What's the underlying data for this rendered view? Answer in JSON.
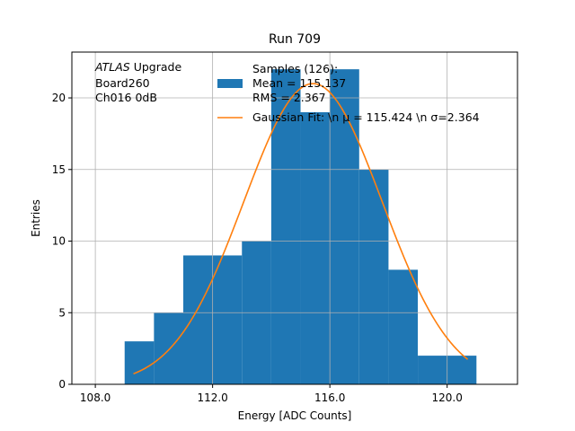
{
  "chart_data": {
    "type": "bar",
    "title": "Run 709",
    "xlabel": "Energy [ADC Counts]",
    "ylabel": "Entries",
    "xlim": [
      107.2,
      122.4
    ],
    "ylim": [
      0,
      23.2
    ],
    "x_ticks": [
      108.0,
      112.0,
      116.0,
      120.0
    ],
    "x_tick_labels": [
      "108.0",
      "112.0",
      "116.0",
      "120.0"
    ],
    "y_ticks": [
      0,
      5,
      10,
      15,
      20
    ],
    "y_tick_labels": [
      "0",
      "5",
      "10",
      "15",
      "20"
    ],
    "grid": true,
    "bin_edges": [
      109,
      110,
      111,
      112,
      113,
      114,
      115,
      116,
      117,
      118,
      119,
      120,
      121
    ],
    "values": [
      3,
      5,
      9,
      9,
      10,
      22,
      19,
      22,
      15,
      8,
      2,
      2
    ],
    "bar_color": "#1f77b4",
    "fit": {
      "name": "Gaussian Fit: \\n $\\mu$ = 115.424 \\n $\\sigma$=2.364",
      "mu": 115.424,
      "sigma": 2.364,
      "amplitude": 21.0,
      "x_range": [
        109.3,
        120.7
      ],
      "color": "#ff7f0e"
    },
    "legend": {
      "placement": "top-right",
      "entries": [
        {
          "label_lines": [
            "Samples (126):",
            " Mean = 115.137",
            " RMS = 2.367"
          ],
          "color": "#1f77b4",
          "kind": "patch"
        },
        {
          "label_lines": [
            "Gaussian Fit: \\n μ = 115.424 \\n σ=2.364"
          ],
          "color": "#ff7f0e",
          "kind": "line"
        }
      ]
    },
    "annotation": {
      "placement": "top-left",
      "lines": [
        "ATLAS Upgrade",
        " Board260",
        " Ch016 0dB"
      ],
      "italic_word": "ATLAS",
      "rest_first_line": " Upgrade"
    }
  }
}
